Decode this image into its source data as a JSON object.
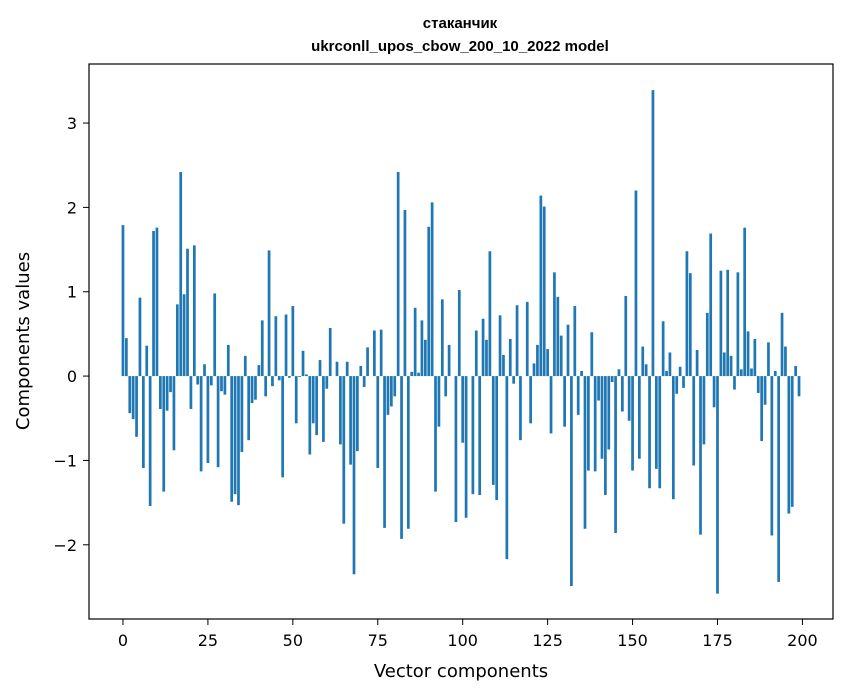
{
  "chart_data": {
    "type": "bar",
    "title": "стаканчик",
    "subtitle": "ukrconll_upos_cbow_200_10_2022 model",
    "xlabel": "Vector components",
    "ylabel": "Components values",
    "xlim": [
      -10,
      209
    ],
    "ylim": [
      -2.88,
      3.7
    ],
    "xticks": [
      0,
      25,
      50,
      75,
      100,
      125,
      150,
      175,
      200
    ],
    "yticks": [
      -2,
      -1,
      0,
      1,
      2,
      3
    ],
    "bar_color": "#1f77b4",
    "grid": false,
    "legend": "none",
    "x": [
      0,
      1,
      2,
      3,
      4,
      5,
      6,
      7,
      8,
      9,
      10,
      11,
      12,
      13,
      14,
      15,
      16,
      17,
      18,
      19,
      20,
      21,
      22,
      23,
      24,
      25,
      26,
      27,
      28,
      29,
      30,
      31,
      32,
      33,
      34,
      35,
      36,
      37,
      38,
      39,
      40,
      41,
      42,
      43,
      44,
      45,
      46,
      47,
      48,
      49,
      50,
      51,
      52,
      53,
      54,
      55,
      56,
      57,
      58,
      59,
      60,
      61,
      62,
      63,
      64,
      65,
      66,
      67,
      68,
      69,
      70,
      71,
      72,
      73,
      74,
      75,
      76,
      77,
      78,
      79,
      80,
      81,
      82,
      83,
      84,
      85,
      86,
      87,
      88,
      89,
      90,
      91,
      92,
      93,
      94,
      95,
      96,
      97,
      98,
      99,
      100,
      101,
      102,
      103,
      104,
      105,
      106,
      107,
      108,
      109,
      110,
      111,
      112,
      113,
      114,
      115,
      116,
      117,
      118,
      119,
      120,
      121,
      122,
      123,
      124,
      125,
      126,
      127,
      128,
      129,
      130,
      131,
      132,
      133,
      134,
      135,
      136,
      137,
      138,
      139,
      140,
      141,
      142,
      143,
      144,
      145,
      146,
      147,
      148,
      149,
      150,
      151,
      152,
      153,
      154,
      155,
      156,
      157,
      158,
      159,
      160,
      161,
      162,
      163,
      164,
      165,
      166,
      167,
      168,
      169,
      170,
      171,
      172,
      173,
      174,
      175,
      176,
      177,
      178,
      179,
      180,
      181,
      182,
      183,
      184,
      185,
      186,
      187,
      188,
      189,
      190,
      191,
      192,
      193,
      194,
      195,
      196,
      197,
      198,
      199
    ],
    "values": [
      1.79,
      0.45,
      -0.44,
      -0.51,
      -0.72,
      0.93,
      -1.09,
      0.36,
      -1.54,
      1.72,
      1.76,
      -0.39,
      -1.37,
      -0.41,
      -0.19,
      -0.88,
      0.85,
      2.42,
      0.97,
      1.51,
      -0.39,
      1.55,
      -0.1,
      -1.13,
      0.14,
      -1.03,
      -0.11,
      0.98,
      -1.08,
      -0.18,
      -0.22,
      0.37,
      -1.49,
      -1.4,
      -1.53,
      -0.9,
      0.24,
      -0.76,
      -0.32,
      -0.28,
      0.13,
      0.66,
      -0.24,
      1.49,
      -0.12,
      0.71,
      -0.05,
      -1.2,
      0.73,
      -0.02,
      0.83,
      -0.56,
      -0.01,
      0.3,
      0.02,
      -0.93,
      -0.56,
      -0.7,
      0.19,
      -0.78,
      -0.15,
      0.57,
      0.0,
      0.17,
      -0.81,
      -1.75,
      0.17,
      -1.05,
      -2.35,
      -0.89,
      0.12,
      -0.13,
      0.34,
      0.0,
      0.54,
      -1.09,
      0.55,
      -1.8,
      -0.46,
      -0.36,
      -0.24,
      2.42,
      -1.93,
      1.97,
      -1.81,
      0.05,
      0.81,
      0.04,
      0.66,
      0.43,
      1.77,
      2.06,
      -1.37,
      -0.6,
      0.91,
      -0.24,
      0.37,
      0.0,
      -1.73,
      1.02,
      -0.79,
      -1.68,
      0.0,
      -1.4,
      0.54,
      -1.41,
      0.68,
      0.43,
      1.48,
      -1.29,
      -1.47,
      0.72,
      0.25,
      -2.17,
      0.44,
      -0.09,
      0.84,
      -0.76,
      0.0,
      0.88,
      -0.56,
      0.15,
      0.37,
      2.14,
      2.01,
      0.32,
      -0.68,
      1.23,
      0.94,
      0.48,
      -0.6,
      0.61,
      -2.49,
      0.83,
      -0.46,
      0.06,
      -1.81,
      -1.12,
      0.52,
      -1.13,
      -0.29,
      -0.98,
      -1.41,
      -0.87,
      -0.07,
      -1.86,
      0.08,
      -0.42,
      0.95,
      -0.53,
      -1.12,
      2.2,
      -0.98,
      0.35,
      0.14,
      -1.33,
      3.39,
      -1.1,
      -1.33,
      0.65,
      0.06,
      0.28,
      -1.46,
      -0.21,
      0.11,
      -0.14,
      1.48,
      1.22,
      -1.06,
      0.31,
      -1.88,
      -0.81,
      0.75,
      1.69,
      -0.37,
      -2.58,
      1.25,
      0.28,
      1.26,
      0.24,
      -0.16,
      1.23,
      0.08,
      1.76,
      0.53,
      0.09,
      0.44,
      -0.2,
      -0.77,
      -0.34,
      0.4,
      -1.89,
      0.06,
      -2.44,
      0.75,
      0.35,
      -1.63,
      -1.55,
      0.12,
      -0.24
    ]
  }
}
